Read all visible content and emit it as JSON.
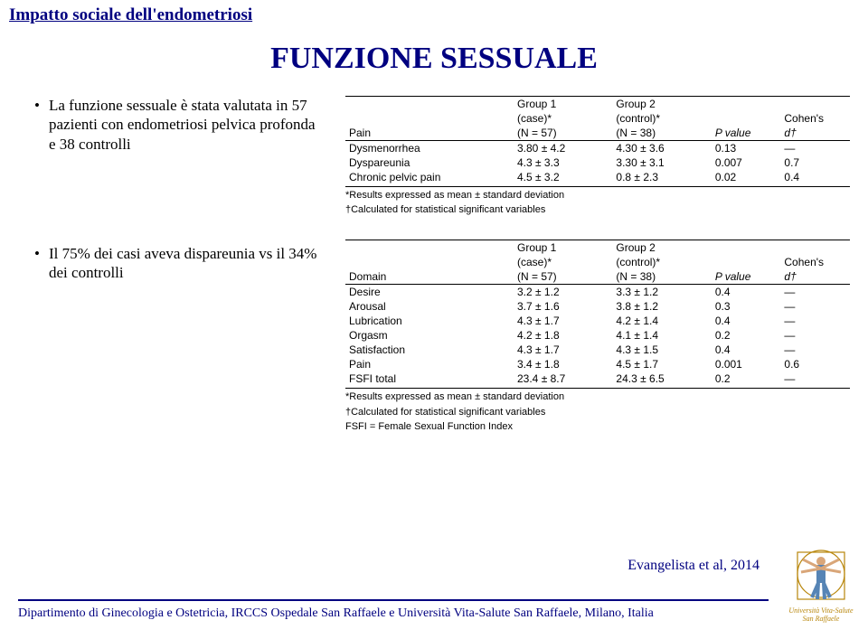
{
  "header": {
    "title": "Impatto sociale dell'endometriosi"
  },
  "page_title": "FUNZIONE SESSUALE",
  "bullets": [
    "La funzione sessuale è stata valutata in 57 pazienti con endometriosi pelvica profonda e 38 controlli",
    "Il 75% dei casi aveva dispareunia vs il 34% dei controlli"
  ],
  "table1": {
    "head": {
      "c1": "Pain",
      "c2a": "Group 1",
      "c2b": "(case)*",
      "c2c": "(N = 57)",
      "c3a": "Group 2",
      "c3b": "(control)*",
      "c3c": "(N = 38)",
      "c4": "P value",
      "c5a": "Cohen's",
      "c5b": "d†"
    },
    "rows": [
      {
        "c1": "Dysmenorrhea",
        "c2": "3.80 ± 4.2",
        "c3": "4.30 ± 3.6",
        "c4": "0.13",
        "c5": "—"
      },
      {
        "c1": "Dyspareunia",
        "c2": "4.3 ± 3.3",
        "c3": "3.30 ± 3.1",
        "c4": "0.007",
        "c5": "0.7"
      },
      {
        "c1": "Chronic pelvic pain",
        "c2": "4.5 ± 3.2",
        "c3": "0.8 ± 2.3",
        "c4": "0.02",
        "c5": "0.4"
      }
    ],
    "footnote1": "*Results expressed as mean ± standard deviation",
    "footnote2": "†Calculated for statistical significant variables"
  },
  "table2": {
    "head": {
      "c1": "Domain",
      "c2a": "Group 1",
      "c2b": "(case)*",
      "c2c": "(N = 57)",
      "c3a": "Group 2",
      "c3b": "(control)*",
      "c3c": "(N = 38)",
      "c4": "P value",
      "c5a": "Cohen's",
      "c5b": "d†"
    },
    "rows": [
      {
        "c1": "Desire",
        "c2": "3.2 ± 1.2",
        "c3": "3.3 ± 1.2",
        "c4": "0.4",
        "c5": "—"
      },
      {
        "c1": "Arousal",
        "c2": "3.7 ± 1.6",
        "c3": "3.8 ± 1.2",
        "c4": "0.3",
        "c5": "—"
      },
      {
        "c1": "Lubrication",
        "c2": "4.3 ± 1.7",
        "c3": "4.2 ± 1.4",
        "c4": "0.4",
        "c5": "—"
      },
      {
        "c1": "Orgasm",
        "c2": "4.2 ± 1.8",
        "c3": "4.1 ± 1.4",
        "c4": "0.2",
        "c5": "—"
      },
      {
        "c1": "Satisfaction",
        "c2": "4.3 ± 1.7",
        "c3": "4.3 ± 1.5",
        "c4": "0.4",
        "c5": "—"
      },
      {
        "c1": "Pain",
        "c2": "3.4 ± 1.8",
        "c3": "4.5 ± 1.7",
        "c4": "0.001",
        "c5": "0.6"
      },
      {
        "c1": "FSFI total",
        "c2": "23.4 ± 8.7",
        "c3": "24.3 ± 6.5",
        "c4": "0.2",
        "c5": "—"
      }
    ],
    "footnote1": "*Results expressed as mean ± standard deviation",
    "footnote2": "†Calculated for statistical significant variables",
    "footnote3": "FSFI = Female Sexual Function Index"
  },
  "citation": "Evangelista et al, 2014",
  "footer": "Dipartimento di Ginecologia e Ostetricia, IRCCS Ospedale San Raffaele e Università Vita-Salute San Raffaele, Milano, Italia",
  "logo": {
    "line1": "Università Vita-Salute",
    "line2": "San Raffaele"
  },
  "colors": {
    "navy": "#000080",
    "gold": "#b8860b",
    "skin": "#d9a679",
    "body": "#5684b5",
    "rule": "#000000"
  }
}
